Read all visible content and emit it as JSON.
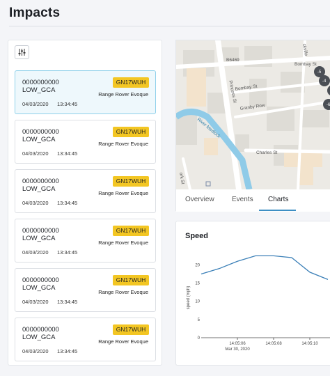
{
  "page": {
    "title": "Impacts"
  },
  "filter": {
    "icon": "sliders-icon"
  },
  "impacts": [
    {
      "id": "0000000000",
      "code": "LOW_GCA",
      "date": "04/03/2020",
      "time": "13:34:45",
      "plate": "GN17WUH",
      "model": "Range Rover Evoque",
      "selected": true
    },
    {
      "id": "0000000000",
      "code": "LOW_GCA",
      "date": "04/03/2020",
      "time": "13:34:45",
      "plate": "GN17WUH",
      "model": "Range Rover Evoque",
      "selected": false
    },
    {
      "id": "0000000000",
      "code": "LOW_GCA",
      "date": "04/03/2020",
      "time": "13:34:45",
      "plate": "GN17WUH",
      "model": "Range Rover Evoque",
      "selected": false
    },
    {
      "id": "0000000000",
      "code": "LOW_GCA",
      "date": "04/03/2020",
      "time": "13:34:45",
      "plate": "GN17WUH",
      "model": "Range Rover Evoque",
      "selected": false
    },
    {
      "id": "0000000000",
      "code": "LOW_GCA",
      "date": "04/03/2020",
      "time": "13:34:45",
      "plate": "GN17WUH",
      "model": "Range Rover Evoque",
      "selected": false
    },
    {
      "id": "0000000000",
      "code": "LOW_GCA",
      "date": "04/03/2020",
      "time": "13:34:45",
      "plate": "GN17WUH",
      "model": "Range Rover Evoque",
      "selected": false
    }
  ],
  "map": {
    "labels": {
      "b6469": "B6469",
      "bombay_st_1": "Bombay St",
      "bombay_st_2": "Bombay St",
      "princess_st": "Princess St",
      "granby_row": "Granby Row",
      "river_medlock": "River Medlock",
      "charles_st": "Charles St",
      "york_st": "ork St",
      "sackville": "ckville"
    },
    "markers": [
      "-5",
      "-4",
      "-6"
    ]
  },
  "tabs": [
    {
      "label": "Overview",
      "active": false
    },
    {
      "label": "Events",
      "active": false
    },
    {
      "label": "Charts",
      "active": true
    }
  ],
  "chart_data": {
    "type": "line",
    "title": "Speed",
    "ylabel": "speed (mph)",
    "xlabel": "",
    "ylim": [
      0,
      22
    ],
    "yticks": [
      0,
      5,
      10,
      15,
      20
    ],
    "xtick_labels": [
      "14:05:06",
      "14:05:08",
      "14:05:10"
    ],
    "date_label": "Mar 30, 2020",
    "series": [
      {
        "x": [
          "14:05:04",
          "14:05:05",
          "14:05:06",
          "14:05:07",
          "14:05:08",
          "14:05:09",
          "14:05:10",
          "14:05:11"
        ],
        "values": [
          17.5,
          19,
          21,
          22.5,
          22.5,
          22,
          18,
          16
        ],
        "color": "#3a7fb7"
      }
    ],
    "grid": false
  }
}
